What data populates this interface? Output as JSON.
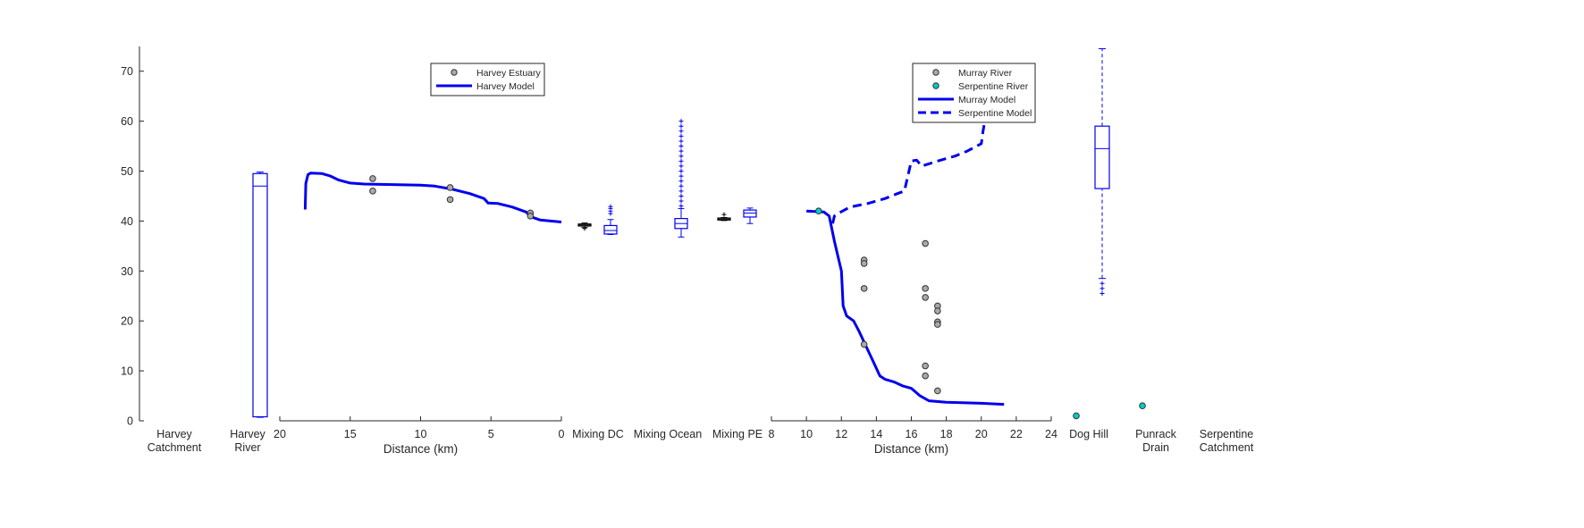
{
  "chart_data": {
    "type": "scatter",
    "y_axis": {
      "ylim": [
        0,
        75
      ],
      "ticks": [
        0,
        10,
        20,
        30,
        40,
        50,
        60,
        70
      ]
    },
    "category_labels": [
      {
        "id": "harvey_catchment",
        "lines": [
          "Harvey",
          "Catchment"
        ]
      },
      {
        "id": "harvey_river",
        "lines": [
          "Harvey",
          "River"
        ]
      },
      {
        "id": "mixing_dc",
        "lines": [
          "Mixing DC"
        ]
      },
      {
        "id": "mixing_ocean",
        "lines": [
          "Mixing Ocean"
        ]
      },
      {
        "id": "mixing_pe",
        "lines": [
          "Mixing PE"
        ]
      },
      {
        "id": "dog_hill",
        "lines": [
          "Dog Hill"
        ]
      },
      {
        "id": "punrack_drain",
        "lines": [
          "Punrack",
          "Drain"
        ]
      },
      {
        "id": "serpentine_catchment",
        "lines": [
          "Serpentine",
          "Catchment"
        ]
      }
    ],
    "harvey_panel": {
      "xlabel": "Distance (km)",
      "xlim": [
        20,
        0
      ],
      "xticks": [
        20,
        15,
        10,
        5,
        0
      ],
      "legend": [
        {
          "label": "Harvey Estuary",
          "kind": "marker",
          "color": "#a9a9a9"
        },
        {
          "label": "Harvey Model",
          "kind": "solid",
          "color": "#0000ee"
        }
      ],
      "observations": [
        [
          13.4,
          48.5
        ],
        [
          13.4,
          46.0
        ],
        [
          7.9,
          46.7
        ],
        [
          7.9,
          44.3
        ],
        [
          2.2,
          41.6
        ],
        [
          2.2,
          41.0
        ]
      ],
      "model": [
        [
          18.2,
          42.3
        ],
        [
          18.15,
          47.5
        ],
        [
          18.0,
          49.3
        ],
        [
          17.8,
          49.6
        ],
        [
          17.0,
          49.5
        ],
        [
          16.4,
          49.0
        ],
        [
          15.8,
          48.2
        ],
        [
          15.0,
          47.6
        ],
        [
          14.0,
          47.4
        ],
        [
          12.0,
          47.3
        ],
        [
          10.0,
          47.2
        ],
        [
          9.0,
          47.0
        ],
        [
          7.8,
          46.4
        ],
        [
          6.5,
          45.5
        ],
        [
          5.5,
          44.5
        ],
        [
          5.2,
          43.6
        ],
        [
          4.5,
          43.5
        ],
        [
          3.5,
          42.8
        ],
        [
          2.5,
          41.8
        ],
        [
          2.2,
          40.9
        ],
        [
          1.5,
          40.2
        ],
        [
          0.0,
          39.8
        ]
      ]
    },
    "murray_panel": {
      "xlabel": "Distance (km)",
      "xlim": [
        8,
        24
      ],
      "xticks": [
        8,
        10,
        12,
        14,
        16,
        18,
        20,
        22,
        24
      ],
      "legend": [
        {
          "label": "Murray River",
          "kind": "marker",
          "color": "#a9a9a9"
        },
        {
          "label": "Serpentine River",
          "kind": "marker",
          "color": "#00cccc"
        },
        {
          "label": "Murray Model",
          "kind": "solid",
          "color": "#0000ee"
        },
        {
          "label": "Serpentine Model",
          "kind": "dashed",
          "color": "#0000ee"
        }
      ],
      "murray_observations": [
        [
          13.3,
          32.2
        ],
        [
          13.3,
          31.5
        ],
        [
          13.3,
          26.5
        ],
        [
          13.3,
          15.3
        ],
        [
          16.8,
          35.5
        ],
        [
          16.8,
          26.5
        ],
        [
          16.8,
          24.7
        ],
        [
          16.8,
          11.0
        ],
        [
          16.8,
          9.0
        ],
        [
          17.5,
          23.0
        ],
        [
          17.5,
          22.0
        ],
        [
          17.5,
          19.8
        ],
        [
          17.5,
          19.3
        ],
        [
          17.5,
          6.0
        ]
      ],
      "serpentine_observations": [
        [
          10.7,
          42.0
        ]
      ],
      "murray_model": [
        [
          10.0,
          42.0
        ],
        [
          11.0,
          41.8
        ],
        [
          11.3,
          41.0
        ],
        [
          11.6,
          36.0
        ],
        [
          11.8,
          33.0
        ],
        [
          12.0,
          30.0
        ],
        [
          12.1,
          23.0
        ],
        [
          12.3,
          21.0
        ],
        [
          12.7,
          20.0
        ],
        [
          13.0,
          18.0
        ],
        [
          13.4,
          15.0
        ],
        [
          13.8,
          12.0
        ],
        [
          14.2,
          9.0
        ],
        [
          14.5,
          8.3
        ],
        [
          15.0,
          7.8
        ],
        [
          15.5,
          7.0
        ],
        [
          16.0,
          6.5
        ],
        [
          16.5,
          5.0
        ],
        [
          17.0,
          4.0
        ],
        [
          18.0,
          3.7
        ],
        [
          20.0,
          3.5
        ],
        [
          21.3,
          3.3
        ]
      ],
      "serpentine_model": [
        [
          11.5,
          39.5
        ],
        [
          11.6,
          41.0
        ],
        [
          11.8,
          41.5
        ],
        [
          12.5,
          42.8
        ],
        [
          13.5,
          43.5
        ],
        [
          14.5,
          44.5
        ],
        [
          15.2,
          45.5
        ],
        [
          15.6,
          46.0
        ],
        [
          15.8,
          49.0
        ],
        [
          16.0,
          52.0
        ],
        [
          16.3,
          52.2
        ],
        [
          16.6,
          51.0
        ],
        [
          17.5,
          52.0
        ],
        [
          18.5,
          53.0
        ],
        [
          19.2,
          54.0
        ],
        [
          20.0,
          55.5
        ],
        [
          20.1,
          58.0
        ],
        [
          20.2,
          60.0
        ]
      ]
    },
    "boxplots": [
      {
        "group": "Mixing DC",
        "color": "#000000",
        "position": "left",
        "whisker_low": 38.7,
        "q1": 39.0,
        "median": 39.2,
        "q3": 39.4,
        "whisker_high": 39.6,
        "outliers": [
          38.5
        ]
      },
      {
        "group": "Mixing DC",
        "color": "#0000ee",
        "position": "right",
        "whisker_low": 37.3,
        "q1": 37.4,
        "median": 38.1,
        "q3": 39.1,
        "whisker_high": 40.3,
        "outliers": [
          41.5,
          42.0,
          42.5,
          42.9
        ]
      },
      {
        "group": "Mixing Ocean",
        "color": "#0000ee",
        "position": "center",
        "whisker_low": 36.8,
        "q1": 38.5,
        "median": 39.5,
        "q3": 40.5,
        "whisker_high": 42.5,
        "outliers": [
          43,
          44,
          45,
          46,
          47,
          48,
          49,
          50,
          51,
          52,
          53,
          54,
          55,
          56,
          57,
          58,
          59,
          60
        ]
      },
      {
        "group": "Mixing PE",
        "color": "#000000",
        "position": "left",
        "whisker_low": 40.1,
        "q1": 40.2,
        "median": 40.4,
        "q3": 40.6,
        "whisker_high": 40.7,
        "outliers": [
          41.3
        ]
      },
      {
        "group": "Mixing PE",
        "color": "#0000ee",
        "position": "right",
        "whisker_low": 39.5,
        "q1": 40.8,
        "median": 41.6,
        "q3": 42.2,
        "whisker_high": 42.6,
        "outliers": []
      },
      {
        "group": "Harvey River",
        "color": "#0000ee",
        "position": "center",
        "whisker_low": 0.7,
        "q1": 0.8,
        "median": 47.0,
        "q3": 49.5,
        "whisker_high": 49.8,
        "outliers": []
      },
      {
        "group": "Serpentine Catchment",
        "color": "#0000ee",
        "position": "center",
        "whisker_low": 28.5,
        "q1": 46.5,
        "median": 54.5,
        "q3": 59.0,
        "whisker_high": 74.5,
        "outliers": [
          25.5,
          26.5,
          27.5
        ]
      }
    ],
    "category_points": [
      {
        "group": "Dog Hill",
        "y": 1.0,
        "color": "#00cccc"
      },
      {
        "group": "Punrack Drain",
        "y": 3.0,
        "color": "#00cccc"
      }
    ]
  }
}
